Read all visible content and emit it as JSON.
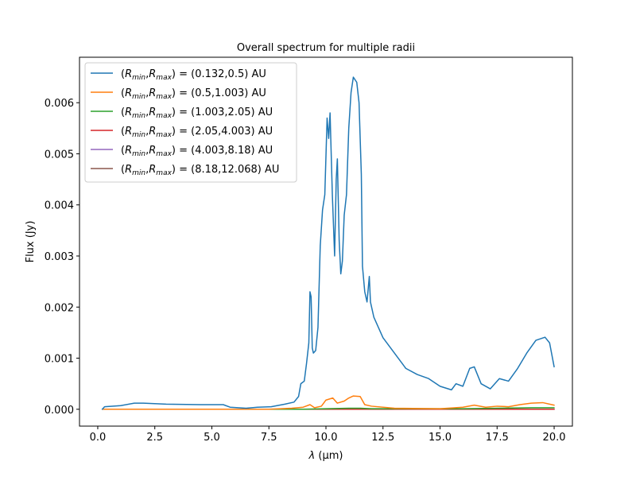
{
  "chart_data": {
    "type": "line",
    "title": "Overall spectrum for multiple radii",
    "xlabel_prefix": "λ",
    "xlabel_unit": " (μm)",
    "ylabel": "Flux (Jy)",
    "xlim": [
      -0.8,
      20.8
    ],
    "ylim": [
      -0.00033,
      0.00689
    ],
    "xticks": [
      0.0,
      2.5,
      5.0,
      7.5,
      10.0,
      12.5,
      15.0,
      17.5,
      20.0
    ],
    "xtick_labels": [
      "0.0",
      "2.5",
      "5.0",
      "7.5",
      "10.0",
      "12.5",
      "15.0",
      "17.5",
      "20.0"
    ],
    "yticks": [
      0.0,
      0.001,
      0.002,
      0.003,
      0.004,
      0.005,
      0.006
    ],
    "ytick_labels": [
      "0.000",
      "0.001",
      "0.002",
      "0.003",
      "0.004",
      "0.005",
      "0.006"
    ],
    "legend_position": "upper left",
    "series": [
      {
        "name": "(R_min,R_max) = (0.132,0.5) AU",
        "range_text": " = (0.132,0.5) AU",
        "color": "#1f77b4",
        "points": [
          [
            0.2,
            0.0
          ],
          [
            0.3,
            5e-05
          ],
          [
            1.0,
            7e-05
          ],
          [
            1.6,
            0.00012
          ],
          [
            2.0,
            0.00012
          ],
          [
            3.0,
            0.0001
          ],
          [
            4.5,
            9e-05
          ],
          [
            5.5,
            9e-05
          ],
          [
            5.8,
            4e-05
          ],
          [
            6.5,
            2e-05
          ],
          [
            7.0,
            4e-05
          ],
          [
            7.6,
            5e-05
          ],
          [
            8.2,
            0.0001
          ],
          [
            8.6,
            0.00014
          ],
          [
            8.8,
            0.00025
          ],
          [
            8.9,
            0.0005
          ],
          [
            9.05,
            0.00055
          ],
          [
            9.15,
            0.0009
          ],
          [
            9.25,
            0.0013
          ],
          [
            9.3,
            0.0023
          ],
          [
            9.35,
            0.0022
          ],
          [
            9.4,
            0.0012
          ],
          [
            9.45,
            0.0011
          ],
          [
            9.55,
            0.00115
          ],
          [
            9.65,
            0.0016
          ],
          [
            9.75,
            0.0032
          ],
          [
            9.85,
            0.0039
          ],
          [
            9.95,
            0.0042
          ],
          [
            10.05,
            0.0057
          ],
          [
            10.12,
            0.0053
          ],
          [
            10.18,
            0.0058
          ],
          [
            10.28,
            0.0042
          ],
          [
            10.38,
            0.003
          ],
          [
            10.45,
            0.0045
          ],
          [
            10.5,
            0.0049
          ],
          [
            10.58,
            0.0033
          ],
          [
            10.65,
            0.00265
          ],
          [
            10.72,
            0.0029
          ],
          [
            10.8,
            0.0038
          ],
          [
            10.9,
            0.0042
          ],
          [
            11.0,
            0.0055
          ],
          [
            11.1,
            0.0062
          ],
          [
            11.2,
            0.0065
          ],
          [
            11.35,
            0.0064
          ],
          [
            11.45,
            0.006
          ],
          [
            11.55,
            0.0046
          ],
          [
            11.6,
            0.0028
          ],
          [
            11.7,
            0.0023
          ],
          [
            11.8,
            0.0021
          ],
          [
            11.9,
            0.0026
          ],
          [
            11.95,
            0.0021
          ],
          [
            12.1,
            0.0018
          ],
          [
            12.5,
            0.0014
          ],
          [
            13.0,
            0.0011
          ],
          [
            13.5,
            0.0008
          ],
          [
            14.0,
            0.00068
          ],
          [
            14.5,
            0.0006
          ],
          [
            15.0,
            0.00045
          ],
          [
            15.5,
            0.00038
          ],
          [
            15.7,
            0.0005
          ],
          [
            16.0,
            0.00045
          ],
          [
            16.3,
            0.0008
          ],
          [
            16.5,
            0.00083
          ],
          [
            16.8,
            0.0005
          ],
          [
            17.2,
            0.0004
          ],
          [
            17.6,
            0.0006
          ],
          [
            18.0,
            0.00055
          ],
          [
            18.4,
            0.0008
          ],
          [
            18.8,
            0.0011
          ],
          [
            19.2,
            0.00135
          ],
          [
            19.6,
            0.00141
          ],
          [
            19.8,
            0.0013
          ],
          [
            20.0,
            0.00083
          ]
        ]
      },
      {
        "name": "(R_min,R_max) = (0.5,1.003) AU",
        "range_text": " = (0.5,1.003) AU",
        "color": "#ff7f0e",
        "points": [
          [
            0.2,
            0.0
          ],
          [
            7.5,
            0.0
          ],
          [
            8.5,
            2e-05
          ],
          [
            9.0,
            4e-05
          ],
          [
            9.3,
            9e-05
          ],
          [
            9.5,
            3e-05
          ],
          [
            9.8,
            6e-05
          ],
          [
            10.0,
            0.00018
          ],
          [
            10.3,
            0.00022
          ],
          [
            10.5,
            0.00012
          ],
          [
            10.8,
            0.00016
          ],
          [
            11.0,
            0.00022
          ],
          [
            11.2,
            0.00026
          ],
          [
            11.5,
            0.00025
          ],
          [
            11.7,
            9e-05
          ],
          [
            12.0,
            6e-05
          ],
          [
            13.0,
            2e-05
          ],
          [
            15.0,
            1e-05
          ],
          [
            16.0,
            4e-05
          ],
          [
            16.5,
            8e-05
          ],
          [
            17.0,
            4e-05
          ],
          [
            17.5,
            6e-05
          ],
          [
            18.0,
            5e-05
          ],
          [
            18.5,
            9e-05
          ],
          [
            19.0,
            0.00012
          ],
          [
            19.5,
            0.00013
          ],
          [
            20.0,
            8e-05
          ]
        ]
      },
      {
        "name": "(R_min,R_max) = (1.003,2.05) AU",
        "range_text": " = (1.003,2.05) AU",
        "color": "#2ca02c",
        "points": [
          [
            0.2,
            0.0
          ],
          [
            9.0,
            0.0
          ],
          [
            10.0,
            1e-05
          ],
          [
            11.0,
            2e-05
          ],
          [
            11.5,
            2e-05
          ],
          [
            12.0,
            1e-05
          ],
          [
            16.0,
            1e-05
          ],
          [
            19.0,
            3e-05
          ],
          [
            20.0,
            3e-05
          ]
        ]
      },
      {
        "name": "(R_min,R_max) = (2.05,4.003) AU",
        "range_text": " = (2.05,4.003) AU",
        "color": "#d62728",
        "points": [
          [
            0.2,
            0.0
          ],
          [
            20.0,
            0.0
          ]
        ]
      },
      {
        "name": "(R_min,R_max) = (4.003,8.18) AU",
        "range_text": " = (4.003,8.18) AU",
        "color": "#9467bd",
        "points": [
          [
            0.2,
            0.0
          ],
          [
            20.0,
            0.0
          ]
        ]
      },
      {
        "name": "(R_min,R_max) = (8.18,12.068) AU",
        "range_text": " = (8.18,12.068) AU",
        "color": "#8c564b",
        "points": [
          [
            0.2,
            0.0
          ],
          [
            20.0,
            0.0
          ]
        ]
      }
    ]
  }
}
